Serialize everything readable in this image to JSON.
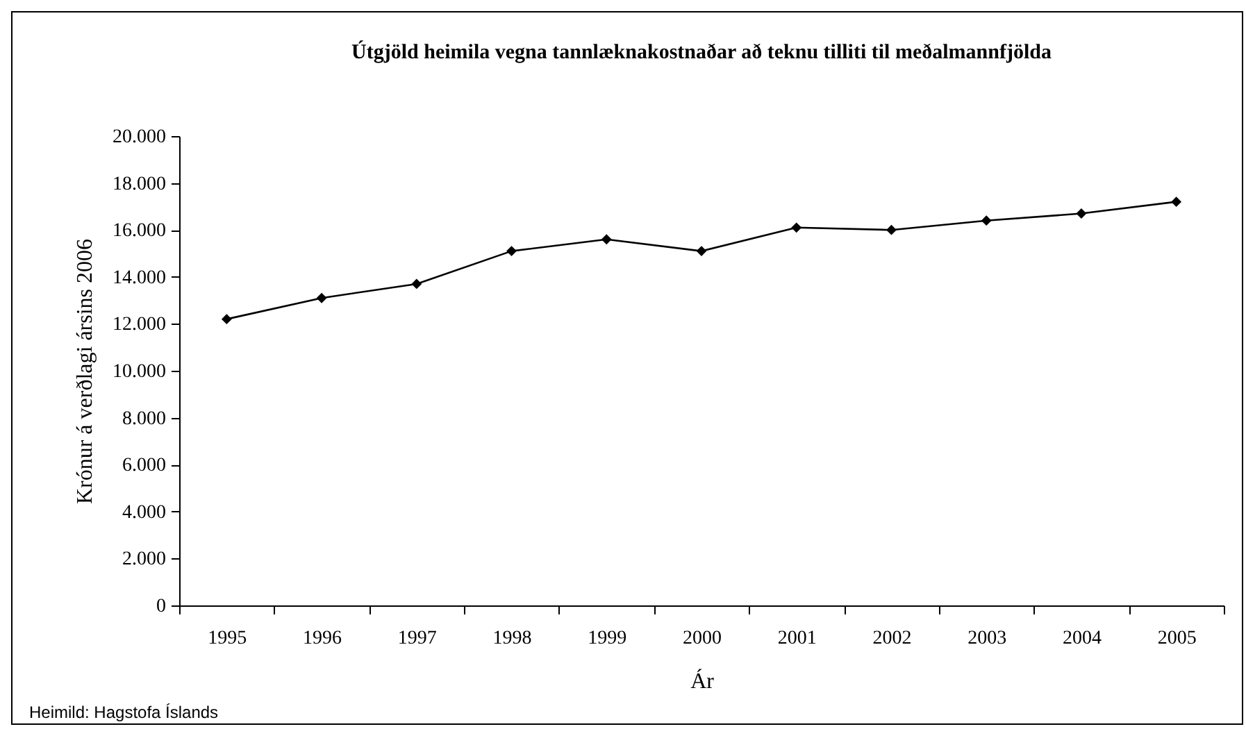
{
  "chart_data": {
    "type": "line",
    "title": "Útgjöld heimila vegna tannlæknakostnaðar að teknu tilliti til meðalmannfjölda",
    "xlabel": "Ár",
    "ylabel": "Krónur á verðlagi ársins 2006",
    "categories": [
      "1995",
      "1996",
      "1997",
      "1998",
      "1999",
      "2000",
      "2001",
      "2002",
      "2003",
      "2004",
      "2005"
    ],
    "series": [
      {
        "color": "#000000",
        "values": [
          12200,
          13100,
          13700,
          15100,
          15600,
          15100,
          16100,
          16000,
          16400,
          16700,
          17200
        ]
      }
    ],
    "ylim": [
      0,
      20000
    ],
    "yticks": [
      0,
      {
        "value": 2000,
        "label": "2.000"
      },
      {
        "value": 4000,
        "label": "4.000"
      },
      {
        "value": 6000,
        "label": "6.000"
      },
      {
        "value": 8000,
        "label": "8.000"
      },
      {
        "value": 10000,
        "label": "10.000"
      },
      {
        "value": 12000,
        "label": "12.000"
      },
      {
        "value": 14000,
        "label": "14.000"
      },
      {
        "value": 16000,
        "label": "16.000"
      },
      {
        "value": 18000,
        "label": "18.000"
      },
      {
        "value": 20000,
        "label": "20.000"
      }
    ],
    "grid": false,
    "legend": false,
    "marker": "diamond",
    "line_style": "solid",
    "annotations": [
      "Heimild: Hagstofa Íslands"
    ]
  }
}
